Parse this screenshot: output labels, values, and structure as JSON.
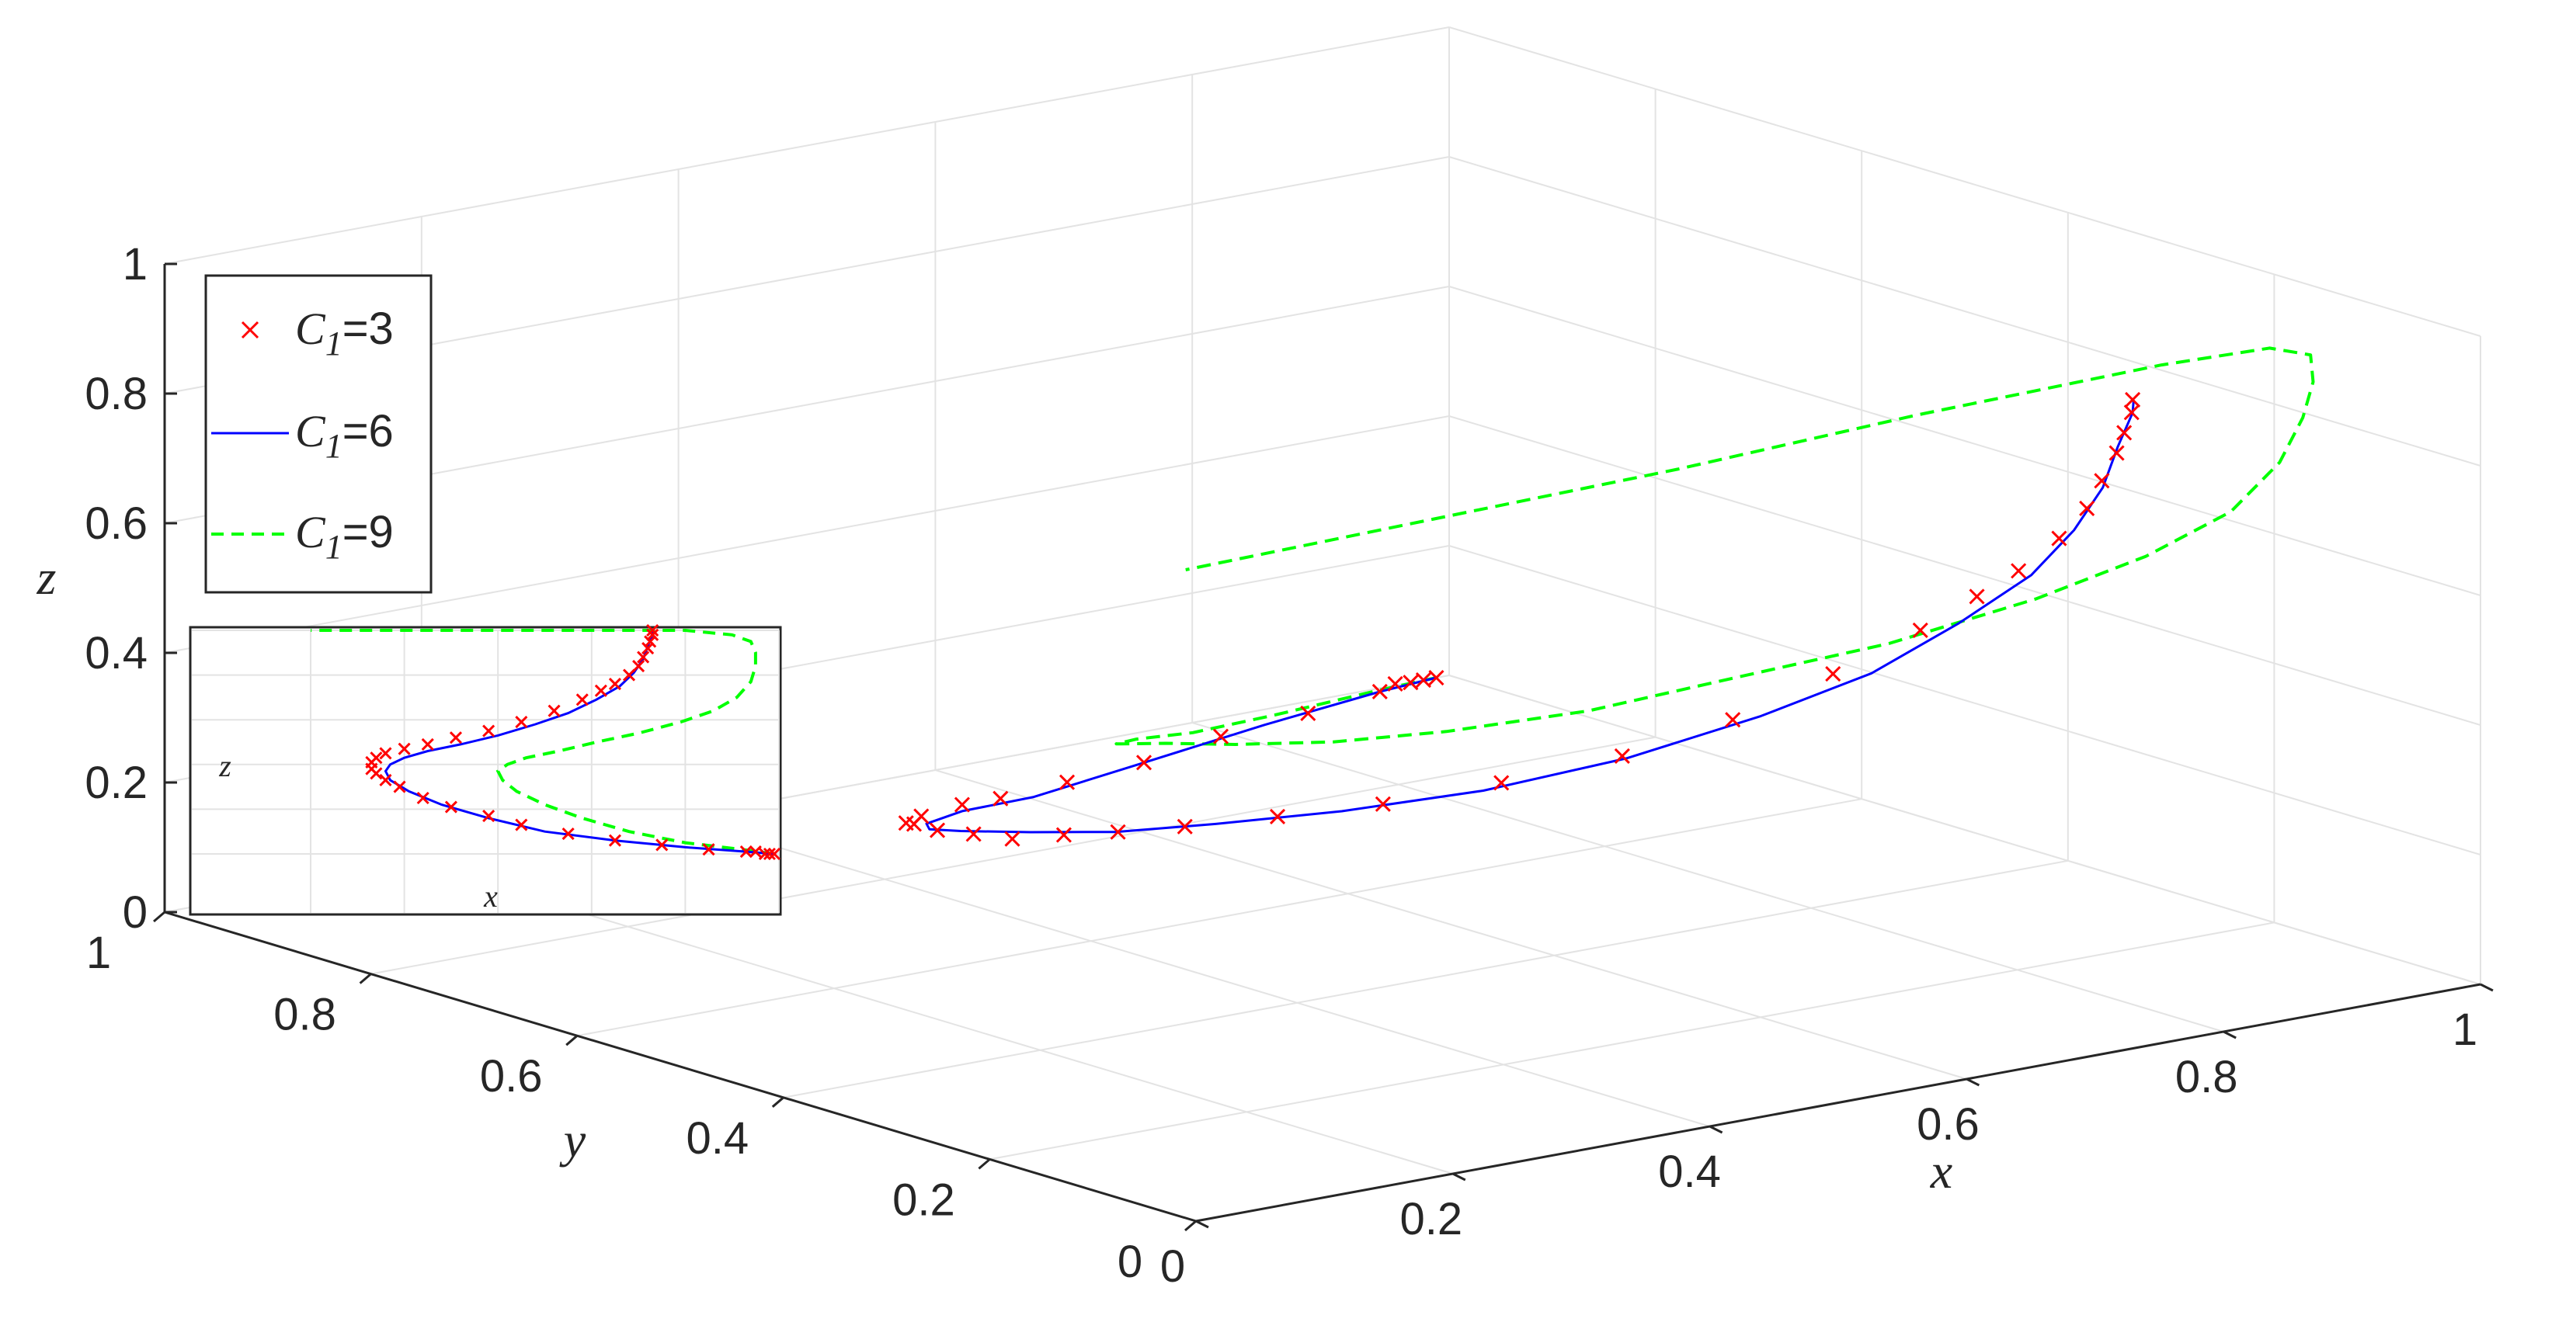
{
  "chart_data": [
    {
      "type": "line",
      "subtype": "3d",
      "title": "",
      "xlabel": "x",
      "ylabel": "y",
      "zlabel": "z",
      "xlim": [
        0,
        1
      ],
      "ylim": [
        0,
        1
      ],
      "zlim": [
        0,
        1
      ],
      "xticks": [
        "0",
        "0.2",
        "0.4",
        "0.6",
        "0.8",
        "1"
      ],
      "yticks": [
        "0",
        "0.2",
        "0.4",
        "0.6",
        "0.8",
        "1"
      ],
      "zticks": [
        "0",
        "0.2",
        "0.4",
        "0.6",
        "0.8",
        "1"
      ],
      "grid": true,
      "legend_position": "top-left",
      "series": [
        {
          "name": "C1=3",
          "name_main": "C",
          "name_sub": "1",
          "name_rest": "=3",
          "style": "markers-x",
          "color": "#ff0000",
          "points": [
            [
              0.99,
              1.0,
              0.0
            ],
            [
              0.98,
              1.0,
              0.0
            ],
            [
              0.97,
              1.0,
              0.0
            ],
            [
              0.95,
              0.99,
              0.01
            ],
            [
              0.93,
              0.98,
              0.01
            ],
            [
              0.85,
              0.95,
              0.02
            ],
            [
              0.75,
              0.91,
              0.04
            ],
            [
              0.65,
              0.86,
              0.06
            ],
            [
              0.55,
              0.81,
              0.09
            ],
            [
              0.45,
              0.75,
              0.13
            ],
            [
              0.38,
              0.7,
              0.17
            ],
            [
              0.3,
              0.64,
              0.21
            ],
            [
              0.24,
              0.58,
              0.25
            ],
            [
              0.19,
              0.51,
              0.3
            ],
            [
              0.16,
              0.45,
              0.33
            ],
            [
              0.14,
              0.39,
              0.36
            ],
            [
              0.13,
              0.34,
              0.38
            ],
            [
              0.13,
              0.29,
              0.41
            ],
            [
              0.14,
              0.25,
              0.43
            ],
            [
              0.16,
              0.21,
              0.45
            ],
            [
              0.2,
              0.17,
              0.47
            ],
            [
              0.25,
              0.13,
              0.49
            ],
            [
              0.31,
              0.09,
              0.52
            ],
            [
              0.38,
              0.06,
              0.55
            ],
            [
              0.45,
              0.04,
              0.59
            ],
            [
              0.52,
              0.03,
              0.64
            ],
            [
              0.58,
              0.02,
              0.69
            ],
            [
              0.62,
              0.015,
              0.73
            ],
            [
              0.65,
              0.012,
              0.76
            ],
            [
              0.68,
              0.01,
              0.8
            ],
            [
              0.7,
              0.008,
              0.84
            ],
            [
              0.71,
              0.006,
              0.88
            ],
            [
              0.72,
              0.004,
              0.92
            ],
            [
              0.725,
              0.003,
              0.95
            ],
            [
              0.73,
              0.002,
              0.98
            ],
            [
              0.73,
              0.001,
              1.0
            ]
          ]
        },
        {
          "name": "C1=6",
          "name_main": "C",
          "name_sub": "1",
          "name_rest": "=6",
          "style": "solid",
          "color": "#0000ff",
          "points": [
            [
              0.99,
              1.0,
              0.0
            ],
            [
              0.93,
              0.98,
              0.01
            ],
            [
              0.8,
              0.93,
              0.03
            ],
            [
              0.65,
              0.86,
              0.06
            ],
            [
              0.5,
              0.78,
              0.1
            ],
            [
              0.38,
              0.7,
              0.16
            ],
            [
              0.28,
              0.61,
              0.22
            ],
            [
              0.21,
              0.52,
              0.28
            ],
            [
              0.17,
              0.44,
              0.33
            ],
            [
              0.16,
              0.36,
              0.37
            ],
            [
              0.17,
              0.29,
              0.4
            ],
            [
              0.2,
              0.23,
              0.43
            ],
            [
              0.25,
              0.17,
              0.46
            ],
            [
              0.32,
              0.12,
              0.49
            ],
            [
              0.4,
              0.08,
              0.53
            ],
            [
              0.48,
              0.05,
              0.58
            ],
            [
              0.55,
              0.03,
              0.63
            ],
            [
              0.61,
              0.02,
              0.69
            ],
            [
              0.66,
              0.012,
              0.75
            ],
            [
              0.69,
              0.008,
              0.81
            ],
            [
              0.71,
              0.005,
              0.87
            ],
            [
              0.72,
              0.003,
              0.93
            ],
            [
              0.73,
              0.001,
              0.98
            ],
            [
              0.73,
              0.0,
              1.0
            ]
          ]
        },
        {
          "name": "C1=9",
          "name_main": "C",
          "name_sub": "1",
          "name_rest": "=9",
          "style": "dashed",
          "color": "#00ff00",
          "points": [
            [
              0.99,
              1.0,
              0.0
            ],
            [
              0.92,
              0.97,
              0.02
            ],
            [
              0.8,
              0.92,
              0.05
            ],
            [
              0.68,
              0.85,
              0.1
            ],
            [
              0.58,
              0.78,
              0.16
            ],
            [
              0.5,
              0.7,
              0.22
            ],
            [
              0.44,
              0.62,
              0.28
            ],
            [
              0.41,
              0.54,
              0.33
            ],
            [
              0.4,
              0.46,
              0.37
            ],
            [
              0.42,
              0.39,
              0.4
            ],
            [
              0.46,
              0.33,
              0.43
            ],
            [
              0.53,
              0.28,
              0.46
            ],
            [
              0.61,
              0.24,
              0.5
            ],
            [
              0.7,
              0.2,
              0.54
            ],
            [
              0.79,
              0.17,
              0.59
            ],
            [
              0.86,
              0.15,
              0.64
            ],
            [
              0.91,
              0.13,
              0.7
            ],
            [
              0.94,
              0.12,
              0.77
            ],
            [
              0.95,
              0.11,
              0.84
            ],
            [
              0.95,
              0.1,
              0.9
            ],
            [
              0.94,
              0.09,
              0.95
            ],
            [
              0.9,
              0.08,
              0.98
            ],
            [
              0.8,
              0.06,
              1.0
            ],
            [
              0.6,
              0.05,
              1.0
            ],
            [
              0.4,
              0.03,
              1.0
            ],
            [
              0.2,
              0.02,
              1.0
            ],
            [
              0.0,
              0.01,
              1.0
            ]
          ]
        }
      ],
      "inset": {
        "view": "x-z projection",
        "xlabel": "x",
        "zlabel": "z"
      }
    }
  ]
}
